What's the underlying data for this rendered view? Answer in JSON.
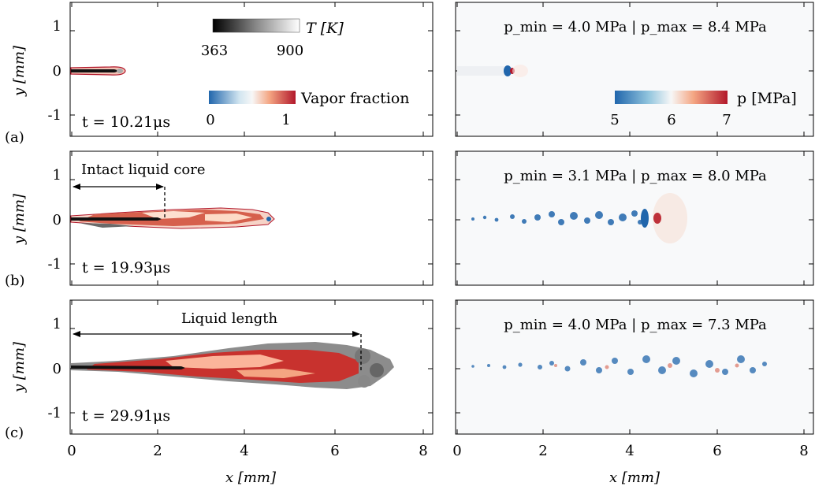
{
  "figure": {
    "panel_labels": [
      "(a)",
      "(b)",
      "(c)"
    ],
    "xlabel": "x [mm]",
    "ylabel": "y [mm]",
    "xticks": [
      "0",
      "2",
      "4",
      "6",
      "8"
    ],
    "yticks": [
      "1",
      "0",
      "-1"
    ],
    "times": [
      "t = 10.21μs",
      "t = 19.93μs",
      "t = 29.91μs"
    ],
    "pressure_ranges": [
      "p_min = 4.0 MPa | p_max = 8.4 MPa",
      "p_min = 3.1 MPa | p_max = 8.0 MPa",
      "p_min = 4.0 MPa | p_max = 7.3 MPa"
    ],
    "annotations": {
      "intact_core": "Intact liquid core",
      "liquid_length": "Liquid length"
    },
    "colorbars": {
      "temperature": {
        "label": "T [K]",
        "min": "363",
        "max": "900"
      },
      "vapor": {
        "label": "Vapor fraction",
        "min": "0",
        "max": "1"
      },
      "pressure": {
        "label": "p [MPa]",
        "ticks": [
          "5",
          "6",
          "7"
        ]
      }
    },
    "colors": {
      "vapor_red": "#b2182b",
      "pressure_blue": "#2166ac",
      "grey": "#5a5a5a"
    }
  },
  "chart_data": [
    {
      "type": "heatmap",
      "panel": "a-left",
      "time_us": 10.21,
      "intact_core_mm": null,
      "liquid_length_mm": null,
      "jet_tip_mm": 1.2,
      "xlim": [
        0,
        8.5
      ],
      "ylim": [
        -1.5,
        1.5
      ]
    },
    {
      "type": "heatmap",
      "panel": "b-left",
      "time_us": 19.93,
      "intact_core_mm": 2.1,
      "jet_tip_mm": 4.6,
      "xlim": [
        0,
        8.5
      ],
      "ylim": [
        -1.5,
        1.5
      ]
    },
    {
      "type": "heatmap",
      "panel": "c-left",
      "time_us": 29.91,
      "liquid_length_mm": 6.7,
      "jet_tip_mm": 7.5,
      "xlim": [
        0,
        8.5
      ],
      "ylim": [
        -1.5,
        1.5
      ]
    },
    {
      "type": "heatmap",
      "panel": "a-right",
      "p_min_MPa": 4.0,
      "p_max_MPa": 8.4,
      "xlim": [
        0,
        8.5
      ],
      "ylim": [
        -1.5,
        1.5
      ]
    },
    {
      "type": "heatmap",
      "panel": "b-right",
      "p_min_MPa": 3.1,
      "p_max_MPa": 8.0,
      "xlim": [
        0,
        8.5
      ],
      "ylim": [
        -1.5,
        1.5
      ]
    },
    {
      "type": "heatmap",
      "panel": "c-right",
      "p_min_MPa": 4.0,
      "p_max_MPa": 7.3,
      "xlim": [
        0,
        8.5
      ],
      "ylim": [
        -1.5,
        1.5
      ]
    }
  ]
}
